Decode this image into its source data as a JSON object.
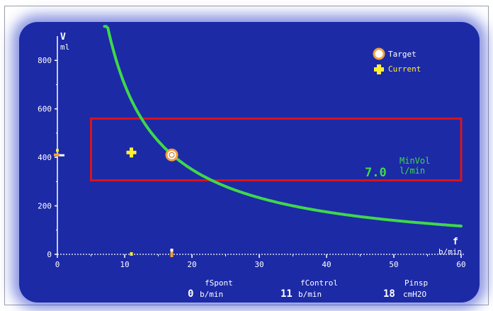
{
  "axes": {
    "y_symbol": "V",
    "y_unit": "ml",
    "x_symbol": "f",
    "x_unit": "b/min"
  },
  "legend": {
    "target_label": "Target",
    "current_label": "Current"
  },
  "minvol": {
    "label": "MinVol",
    "value": "7.0",
    "unit": "l/min"
  },
  "readouts": [
    {
      "label": "fSpont",
      "value": "0",
      "unit": "b/min"
    },
    {
      "label": "fControl",
      "value": "11",
      "unit": "b/min"
    },
    {
      "label": "Pinsp",
      "value": "18",
      "unit": "cmH2O"
    }
  ],
  "colors": {
    "background": "#1c2aa6",
    "axis": "#ffffff",
    "curve": "#3fd84a",
    "target": "#f2a040",
    "current": "#ffff44",
    "box": "#d8141c",
    "text_green": "#3fd84a",
    "text_yellow": "#ffee33"
  },
  "chart_data": {
    "type": "scatter",
    "x_ticks": [
      "0",
      "10",
      "20",
      "30",
      "40",
      "50",
      "60"
    ],
    "y_ticks": [
      "0",
      "200",
      "400",
      "600",
      "800"
    ],
    "xlim": [
      0,
      60
    ],
    "ylim": [
      0,
      900
    ],
    "curve": {
      "minute_volume_l_per_min": 7.0,
      "x_start": 7,
      "x_end": 60
    },
    "target_point": {
      "x": 17,
      "y": 410
    },
    "current_point": {
      "x": 11,
      "y": 420
    },
    "safety_box": {
      "x": [
        5,
        60
      ],
      "y": [
        305,
        560
      ]
    }
  }
}
